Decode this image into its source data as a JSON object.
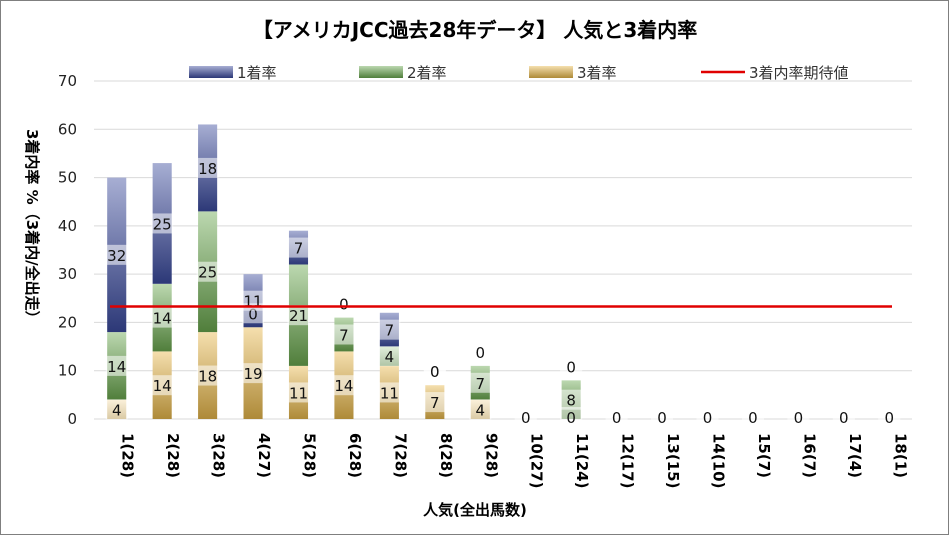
{
  "chart_data": {
    "type": "bar",
    "stacked": true,
    "title": "【アメリカJCC過去28年データ】 人気と3着内率",
    "xlabel": "人気(全出馬数)",
    "ylabel": "3着内率 %（3着内/全出走）",
    "ylim": [
      0,
      70
    ],
    "yticks": [
      0,
      10,
      20,
      30,
      40,
      50,
      60,
      70
    ],
    "grid": true,
    "legend_position": "top",
    "categories": [
      "1(28)",
      "2(28)",
      "3(28)",
      "4(27)",
      "5(28)",
      "6(28)",
      "7(28)",
      "8(28)",
      "9(28)",
      "10(27)",
      "11(24)",
      "12(17)",
      "13(15)",
      "14(10)",
      "15(7)",
      "16(7)",
      "17(4)",
      "18(1)"
    ],
    "series": [
      {
        "name": "3着率",
        "color": "#e8b84a",
        "values": [
          4,
          14,
          18,
          19,
          11,
          14,
          11,
          7,
          4,
          0,
          0,
          0,
          0,
          0,
          0,
          0,
          0,
          0
        ]
      },
      {
        "name": "2着率",
        "color": "#6aa84f",
        "values": [
          14,
          14,
          25,
          0,
          21,
          7,
          4,
          0,
          7,
          0,
          8,
          0,
          0,
          0,
          0,
          0,
          0,
          0
        ]
      },
      {
        "name": "1着率",
        "color": "#3b4a9e",
        "values": [
          32,
          25,
          18,
          11,
          7,
          0,
          7,
          0,
          0,
          0,
          0,
          0,
          0,
          0,
          0,
          0,
          0,
          0
        ]
      }
    ],
    "reference_line": {
      "name": "3着内率期待値",
      "color": "#e00000",
      "value": 23.3
    }
  }
}
